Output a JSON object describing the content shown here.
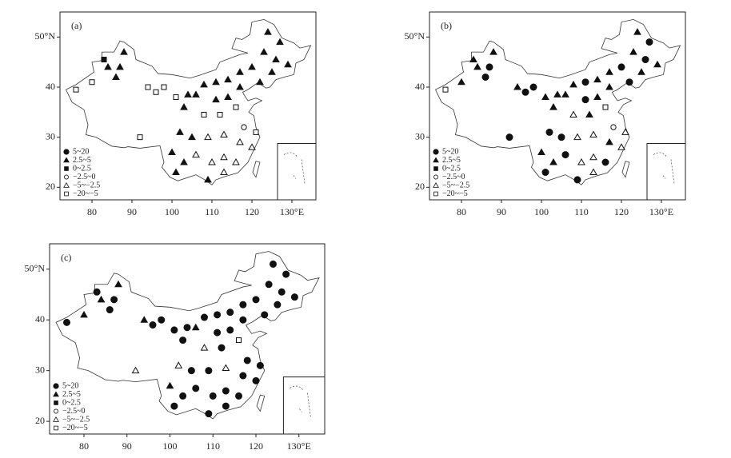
{
  "axes": {
    "xlim": [
      72,
      136
    ],
    "ylim": [
      17.5,
      55
    ],
    "xticks": [
      80,
      90,
      100,
      110,
      120,
      {
        "value": 130,
        "label": "130°E"
      }
    ],
    "yticks": [
      20,
      30,
      40,
      {
        "value": 50,
        "label": "50°N"
      }
    ]
  },
  "legend": [
    "5~20",
    "2.5~5",
    "0~2.5",
    "−2.5~0",
    "−5~−2.5",
    "−20~−5"
  ],
  "stations": {
    "lon": [
      76,
      80,
      84,
      87,
      88,
      83,
      86,
      94,
      96,
      98,
      101,
      103,
      104,
      106,
      108,
      111,
      114,
      117,
      120,
      123,
      126,
      127,
      124,
      129,
      125,
      122,
      117,
      114,
      111,
      108,
      112,
      116,
      118,
      121,
      120,
      117,
      113,
      109,
      105,
      102,
      103,
      106,
      110,
      113,
      116,
      113,
      109,
      101,
      92,
      100
    ],
    "lat": [
      39.5,
      41,
      44,
      44,
      47,
      45.5,
      42,
      40,
      39,
      40,
      38,
      36,
      38.5,
      38.5,
      40.5,
      41,
      41.5,
      43,
      44,
      47,
      45.5,
      49,
      51,
      44.5,
      43,
      41,
      40,
      38,
      37.5,
      34.5,
      34.5,
      36,
      32,
      31,
      28,
      29,
      30.5,
      30,
      30,
      31,
      25,
      26.5,
      25,
      26,
      25,
      23,
      21.5,
      23,
      30,
      27
    ]
  },
  "panels": [
    {
      "label": "(a)",
      "classes": [
        5,
        5,
        1,
        1,
        1,
        2,
        1,
        5,
        5,
        5,
        5,
        1,
        1,
        1,
        1,
        1,
        1,
        1,
        1,
        1,
        1,
        1,
        1,
        1,
        1,
        1,
        1,
        1,
        1,
        5,
        5,
        5,
        3,
        5,
        4,
        4,
        4,
        4,
        1,
        1,
        1,
        4,
        4,
        4,
        4,
        4,
        1,
        1,
        5,
        1
      ]
    },
    {
      "label": "(b)",
      "classes": [
        5,
        1,
        1,
        0,
        1,
        1,
        0,
        1,
        0,
        0,
        1,
        1,
        1,
        1,
        1,
        0,
        1,
        1,
        0,
        1,
        0,
        0,
        1,
        1,
        1,
        0,
        1,
        1,
        0,
        4,
        1,
        5,
        3,
        4,
        4,
        1,
        4,
        4,
        0,
        0,
        1,
        0,
        4,
        4,
        0,
        4,
        0,
        0,
        0,
        1
      ]
    },
    {
      "label": "(c)",
      "classes": [
        0,
        1,
        1,
        0,
        1,
        0,
        0,
        1,
        0,
        0,
        0,
        0,
        0,
        1,
        0,
        0,
        0,
        0,
        0,
        0,
        0,
        0,
        0,
        0,
        0,
        0,
        0,
        0,
        0,
        4,
        0,
        5,
        0,
        0,
        0,
        0,
        4,
        0,
        0,
        4,
        0,
        0,
        0,
        0,
        0,
        0,
        0,
        0,
        4,
        1
      ]
    }
  ]
}
